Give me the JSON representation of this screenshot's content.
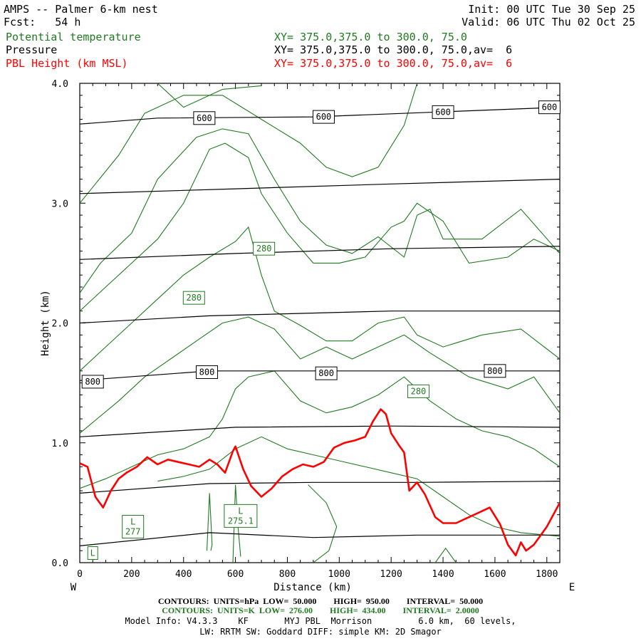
{
  "header": {
    "model_title": "AMPS -- Palmer 6-km nest",
    "forecast": "Fcst:   54 h",
    "init": "Init: 00 UTC Tue 30 Sep 25",
    "valid": "Valid: 06 UTC Thu 02 Oct 25",
    "field1_name": "Potential temperature",
    "field1_xy": "XY= 375.0,375.0 to 300.0, 75.0",
    "field2_name": "Pressure",
    "field2_xy": "XY= 375.0,375.0 to 300.0, 75.0,av=  6",
    "field3_name": "PBL Height (km MSL)",
    "field3_xy": "XY= 375.0,375.0 to 300.0, 75.0,av=  6"
  },
  "footer": {
    "pressure_contours": "CONTOURS:  UNITS=hPa  LOW=  50.000        HIGH=  950.00        INTERVAL=  50.000",
    "theta_contours": "CONTOURS:  UNITS=K  LOW=  276.00        HIGH=  434.00        INTERVAL=  2.0000",
    "model_info": "Model Info: V4.3.3    KF       MYJ PBL  Morrison         6.0 km,  60 levels,",
    "model_info2": "LW: RRTM SW: Goddard DIFF: simple KM: 2D Smagor"
  },
  "colors": {
    "pressure": "#000000",
    "theta": "#217a21",
    "pbl": "#ff0000"
  },
  "chart_data": {
    "type": "line",
    "xlabel": "Distance (km)",
    "ylabel": "Height (km)",
    "xlim": [
      0,
      1850
    ],
    "ylim": [
      0.0,
      4.0
    ],
    "x_ticks": [
      0,
      200,
      400,
      600,
      800,
      1000,
      1200,
      1400,
      1600,
      1800
    ],
    "y_ticks": [
      0.0,
      1.0,
      2.0,
      3.0,
      4.0
    ],
    "y_tick_labels": [
      "0.0",
      "1.0",
      "2.0",
      "3.0",
      "4.0"
    ],
    "left_end_label": "W",
    "right_end_label": "E",
    "pressure_isobars_hPa": [
      {
        "points": [
          [
            0,
            3.66
          ],
          [
            300,
            3.71
          ],
          [
            900,
            3.72
          ],
          [
            1850,
            3.8
          ]
        ]
      },
      {
        "points": [
          [
            0,
            3.08
          ],
          [
            600,
            3.12
          ],
          [
            1200,
            3.16
          ],
          [
            1850,
            3.2
          ]
        ]
      },
      {
        "points": [
          [
            0,
            2.53
          ],
          [
            600,
            2.58
          ],
          [
            1200,
            2.62
          ],
          [
            1850,
            2.64
          ]
        ]
      },
      {
        "points": [
          [
            0,
            2.0
          ],
          [
            500,
            2.06
          ],
          [
            1200,
            2.1
          ],
          [
            1850,
            2.1
          ]
        ]
      },
      {
        "points": [
          [
            0,
            1.52
          ],
          [
            500,
            1.6
          ],
          [
            1200,
            1.6
          ],
          [
            1850,
            1.6
          ]
        ]
      },
      {
        "points": [
          [
            0,
            1.05
          ],
          [
            600,
            1.13
          ],
          [
            1200,
            1.14
          ],
          [
            1850,
            1.13
          ]
        ]
      },
      {
        "points": [
          [
            0,
            0.58
          ],
          [
            500,
            0.66
          ],
          [
            900,
            0.67
          ],
          [
            1300,
            0.67
          ],
          [
            1850,
            0.68
          ]
        ]
      },
      {
        "points": [
          [
            0,
            0.14
          ],
          [
            500,
            0.25
          ],
          [
            900,
            0.21
          ],
          [
            1300,
            0.23
          ],
          [
            1850,
            0.23
          ]
        ]
      }
    ],
    "pressure_labels": [
      {
        "text": "600",
        "x": 480,
        "y": 3.71
      },
      {
        "text": "600",
        "x": 940,
        "y": 3.72
      },
      {
        "text": "600",
        "x": 1400,
        "y": 3.76
      },
      {
        "text": "600",
        "x": 1810,
        "y": 3.8
      },
      {
        "text": "800",
        "x": 50,
        "y": 1.51
      },
      {
        "text": "800",
        "x": 490,
        "y": 1.59
      },
      {
        "text": "800",
        "x": 950,
        "y": 1.58
      },
      {
        "text": "800",
        "x": 1600,
        "y": 1.6
      }
    ],
    "theta_isentropes_K": [
      {
        "points": [
          [
            300,
            4.0
          ],
          [
            400,
            3.8
          ],
          [
            550,
            3.95
          ],
          [
            700,
            3.98
          ]
        ]
      },
      {
        "points": [
          [
            0,
            3.0
          ],
          [
            150,
            3.4
          ],
          [
            250,
            3.75
          ],
          [
            400,
            3.9
          ],
          [
            550,
            3.9
          ],
          [
            700,
            3.7
          ],
          [
            850,
            3.5
          ],
          [
            950,
            3.3
          ],
          [
            1050,
            3.22
          ],
          [
            1150,
            3.3
          ],
          [
            1250,
            3.65
          ],
          [
            1300,
            4.0
          ]
        ]
      },
      {
        "points": [
          [
            0,
            2.25
          ],
          [
            80,
            2.5
          ],
          [
            200,
            2.75
          ],
          [
            300,
            3.2
          ],
          [
            450,
            3.55
          ],
          [
            550,
            3.62
          ],
          [
            650,
            3.58
          ],
          [
            750,
            3.2
          ],
          [
            850,
            2.85
          ],
          [
            950,
            2.65
          ],
          [
            1050,
            2.58
          ],
          [
            1150,
            2.72
          ],
          [
            1250,
            2.55
          ],
          [
            1300,
            2.9
          ],
          [
            1350,
            2.95
          ],
          [
            1400,
            2.7
          ],
          [
            1550,
            2.7
          ],
          [
            1700,
            2.95
          ],
          [
            1850,
            2.58
          ]
        ]
      },
      {
        "points": [
          [
            0,
            2.1
          ],
          [
            100,
            2.3
          ],
          [
            200,
            2.5
          ],
          [
            300,
            2.7
          ],
          [
            400,
            3.0
          ],
          [
            500,
            3.45
          ],
          [
            560,
            3.5
          ],
          [
            650,
            3.38
          ],
          [
            700,
            3.08
          ],
          [
            800,
            2.75
          ],
          [
            900,
            2.5
          ],
          [
            1000,
            2.5
          ],
          [
            1100,
            2.55
          ],
          [
            1200,
            2.8
          ],
          [
            1250,
            2.85
          ],
          [
            1300,
            3.0
          ],
          [
            1400,
            2.85
          ],
          [
            1500,
            2.5
          ],
          [
            1650,
            2.55
          ],
          [
            1750,
            2.7
          ],
          [
            1850,
            2.6
          ]
        ]
      },
      {
        "points": [
          [
            0,
            1.6
          ],
          [
            100,
            1.8
          ],
          [
            200,
            2.0
          ],
          [
            300,
            2.2
          ],
          [
            400,
            2.4
          ],
          [
            500,
            2.55
          ],
          [
            600,
            2.68
          ],
          [
            650,
            2.8
          ],
          [
            700,
            2.4
          ],
          [
            750,
            2.1
          ],
          [
            850,
            1.98
          ],
          [
            950,
            1.85
          ],
          [
            1050,
            1.85
          ],
          [
            1150,
            2.0
          ],
          [
            1250,
            2.05
          ],
          [
            1300,
            1.9
          ],
          [
            1400,
            1.8
          ],
          [
            1550,
            1.9
          ],
          [
            1700,
            1.95
          ],
          [
            1850,
            1.7
          ]
        ]
      },
      {
        "points": [
          [
            0,
            1.08
          ],
          [
            150,
            1.35
          ],
          [
            250,
            1.55
          ],
          [
            350,
            1.7
          ],
          [
            450,
            1.85
          ],
          [
            550,
            2.0
          ],
          [
            650,
            2.05
          ],
          [
            750,
            1.95
          ],
          [
            850,
            1.7
          ],
          [
            950,
            1.8
          ],
          [
            1050,
            1.7
          ],
          [
            1150,
            1.8
          ],
          [
            1250,
            1.9
          ],
          [
            1350,
            1.75
          ],
          [
            1500,
            1.55
          ],
          [
            1650,
            1.45
          ],
          [
            1750,
            1.55
          ],
          [
            1850,
            1.25
          ]
        ]
      },
      {
        "points": [
          [
            0,
            0.62
          ],
          [
            100,
            0.7
          ],
          [
            200,
            0.8
          ],
          [
            300,
            0.9
          ],
          [
            400,
            0.95
          ],
          [
            500,
            1.05
          ],
          [
            550,
            1.2
          ],
          [
            600,
            1.45
          ],
          [
            650,
            1.55
          ],
          [
            750,
            1.6
          ],
          [
            850,
            1.35
          ],
          [
            950,
            1.25
          ],
          [
            1050,
            1.3
          ],
          [
            1150,
            1.4
          ],
          [
            1250,
            1.55
          ],
          [
            1350,
            1.35
          ],
          [
            1450,
            1.2
          ],
          [
            1550,
            1.1
          ],
          [
            1650,
            1.05
          ],
          [
            1750,
            0.95
          ],
          [
            1850,
            0.8
          ]
        ]
      },
      {
        "points": [
          [
            300,
            0.68
          ],
          [
            400,
            0.72
          ],
          [
            500,
            0.78
          ],
          [
            600,
            0.95
          ],
          [
            700,
            1.05
          ],
          [
            800,
            0.95
          ],
          [
            900,
            0.9
          ],
          [
            1000,
            0.85
          ],
          [
            1100,
            0.8
          ],
          [
            1200,
            0.75
          ],
          [
            1300,
            0.7
          ],
          [
            1400,
            0.55
          ],
          [
            1500,
            0.4
          ],
          [
            1600,
            0.3
          ],
          [
            1700,
            0.25
          ],
          [
            1850,
            0.22
          ]
        ]
      },
      {
        "points": [
          [
            880,
            0.65
          ],
          [
            950,
            0.5
          ],
          [
            990,
            0.3
          ],
          [
            960,
            0.1
          ],
          [
            900,
            0.0
          ]
        ]
      },
      {
        "points": [
          [
            1370,
            0.0
          ],
          [
            1410,
            0.12
          ],
          [
            1450,
            0.0
          ]
        ]
      }
    ],
    "theta_labels": [
      {
        "text": "280",
        "x": 710,
        "y": 2.62
      },
      {
        "text": "280",
        "x": 440,
        "y": 2.21
      },
      {
        "text": "280",
        "x": 1305,
        "y": 1.43
      },
      {
        "text": "L\n277",
        "x": 205,
        "y": 0.3
      },
      {
        "text": "L\n275.1",
        "x": 620,
        "y": 0.39
      },
      {
        "text": "L",
        "x": 50,
        "y": 0.08
      }
    ],
    "pbl_height_km": {
      "points": [
        [
          0,
          0.83
        ],
        [
          30,
          0.8
        ],
        [
          60,
          0.55
        ],
        [
          90,
          0.46
        ],
        [
          120,
          0.6
        ],
        [
          150,
          0.7
        ],
        [
          180,
          0.75
        ],
        [
          220,
          0.8
        ],
        [
          260,
          0.88
        ],
        [
          300,
          0.82
        ],
        [
          340,
          0.86
        ],
        [
          380,
          0.84
        ],
        [
          420,
          0.82
        ],
        [
          460,
          0.8
        ],
        [
          500,
          0.86
        ],
        [
          530,
          0.82
        ],
        [
          560,
          0.75
        ],
        [
          590,
          0.93
        ],
        [
          600,
          0.97
        ],
        [
          630,
          0.78
        ],
        [
          660,
          0.64
        ],
        [
          700,
          0.55
        ],
        [
          740,
          0.62
        ],
        [
          780,
          0.72
        ],
        [
          820,
          0.78
        ],
        [
          860,
          0.82
        ],
        [
          900,
          0.8
        ],
        [
          940,
          0.84
        ],
        [
          980,
          0.96
        ],
        [
          1020,
          1.0
        ],
        [
          1060,
          1.02
        ],
        [
          1100,
          1.05
        ],
        [
          1130,
          1.18
        ],
        [
          1160,
          1.28
        ],
        [
          1180,
          1.24
        ],
        [
          1200,
          1.08
        ],
        [
          1230,
          0.98
        ],
        [
          1250,
          0.92
        ],
        [
          1270,
          0.6
        ],
        [
          1300,
          0.67
        ],
        [
          1330,
          0.57
        ],
        [
          1370,
          0.38
        ],
        [
          1400,
          0.33
        ],
        [
          1450,
          0.33
        ],
        [
          1500,
          0.38
        ],
        [
          1550,
          0.43
        ],
        [
          1580,
          0.46
        ],
        [
          1620,
          0.32
        ],
        [
          1650,
          0.15
        ],
        [
          1680,
          0.06
        ],
        [
          1700,
          0.17
        ],
        [
          1720,
          0.1
        ],
        [
          1750,
          0.15
        ],
        [
          1800,
          0.3
        ],
        [
          1850,
          0.5
        ]
      ]
    }
  }
}
